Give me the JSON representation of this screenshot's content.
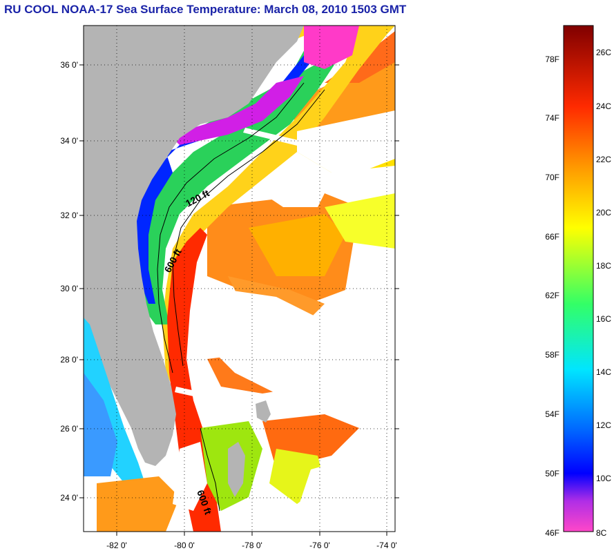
{
  "title": "RU COOL  NOAA-17  Sea Surface Temperature:  March 08, 2010 1503 GMT",
  "map": {
    "lat_ticks": [
      "36 0'",
      "34 0'",
      "32 0'",
      "30 0'",
      "28 0'",
      "26 0'",
      "24 0'"
    ],
    "lon_ticks": [
      "-82 0'",
      "-80 0'",
      "-78 0'",
      "-76 0'",
      "-74 0'"
    ],
    "contours": [
      "120 ft",
      "600 ft",
      "600 ft"
    ],
    "colors": {
      "land": "#b4b4b4",
      "cloud": "#ffffff",
      "frame": "#000000"
    }
  },
  "colorbar": {
    "fahrenheit": [
      "78F",
      "74F",
      "70F",
      "66F",
      "62F",
      "58F",
      "54F",
      "50F",
      "46F"
    ],
    "celsius": [
      "26C",
      "24C",
      "22C",
      "20C",
      "18C",
      "16C",
      "14C",
      "12C",
      "10C",
      "8C"
    ]
  }
}
